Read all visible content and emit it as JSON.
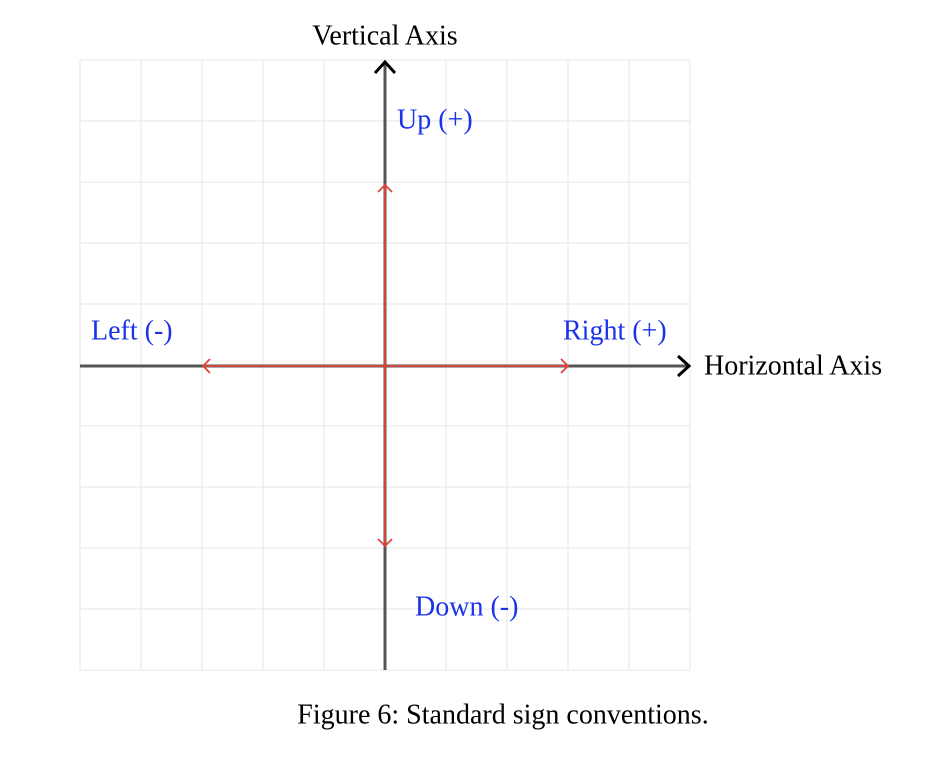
{
  "axes": {
    "vertical": "Vertical Axis",
    "horizontal": "Horizontal Axis"
  },
  "labels": {
    "up": "Up (+)",
    "down": "Down (-)",
    "left": "Left (-)",
    "right": "Right (+)"
  },
  "caption": "Figure 6: Standard sign conventions."
}
